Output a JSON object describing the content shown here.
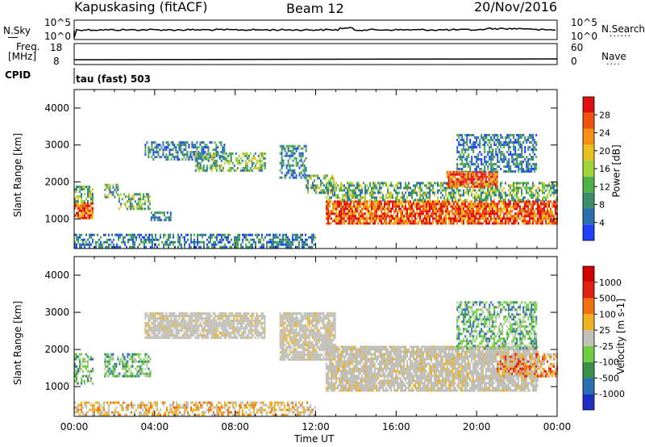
{
  "header": {
    "station": "Kapuskasing (fitACF)",
    "beam": "Beam 12",
    "date": "20/Nov/2016"
  },
  "top_panels": {
    "nsky_label": "N.Sky",
    "nsky_ticks": [
      "10^5",
      "10^0"
    ],
    "nsearch_label": "N.Search",
    "nsearch_ticks": [
      "10^5",
      "10^0"
    ],
    "freq_label": "Freq.",
    "freq_unit": "[MHz]",
    "freq_ticks": [
      "18",
      "8"
    ],
    "nave_label": "Nave",
    "nave_ticks": [
      "60",
      "0"
    ],
    "cpid_label": "CPID",
    "cpid_value": "tau (fast) 503"
  },
  "chart_data": [
    {
      "type": "heatmap",
      "name": "power-panel",
      "ylabel": "Slant Range [km]",
      "xlabel": "Time UT",
      "x_ticks": [
        "00:00",
        "04:00",
        "08:00",
        "12:00",
        "16:00",
        "20:00",
        "00:00"
      ],
      "y_ticks": [
        1000,
        2000,
        3000,
        4000
      ],
      "ylim": [
        200,
        4500
      ],
      "xlim_hours": [
        0,
        24
      ],
      "colorbar": {
        "label": "Power [dB]",
        "ticks": [
          4,
          8,
          12,
          16,
          20,
          24,
          28
        ],
        "range": [
          0,
          32
        ],
        "colors": [
          "#2040ff",
          "#2a6fb0",
          "#3a8f6a",
          "#4fb04a",
          "#9ed43a",
          "#e8c020",
          "#f59010",
          "#f05010",
          "#e01010"
        ]
      },
      "regions": [
        {
          "t0": 0.0,
          "t1": 0.9,
          "r0": 1050,
          "r1": 1450,
          "level": "strong"
        },
        {
          "t0": 0.0,
          "t1": 0.9,
          "r0": 1450,
          "r1": 1900,
          "level": "medium"
        },
        {
          "t0": 1.5,
          "t1": 2.2,
          "r0": 1600,
          "r1": 1950,
          "level": "medium"
        },
        {
          "t0": 2.2,
          "t1": 3.8,
          "r0": 1250,
          "r1": 1700,
          "level": "medium"
        },
        {
          "t0": 3.8,
          "t1": 4.8,
          "r0": 1000,
          "r1": 1200,
          "level": "weak"
        },
        {
          "t0": 3.5,
          "t1": 7.5,
          "r0": 2600,
          "r1": 3100,
          "level": "weak"
        },
        {
          "t0": 6.0,
          "t1": 9.5,
          "r0": 2300,
          "r1": 2800,
          "level": "medium"
        },
        {
          "t0": 10.2,
          "t1": 11.5,
          "r0": 2100,
          "r1": 3000,
          "level": "weak"
        },
        {
          "t0": 11.5,
          "t1": 13.0,
          "r0": 1700,
          "r1": 2200,
          "level": "medium"
        },
        {
          "t0": 12.5,
          "t1": 24.0,
          "r0": 900,
          "r1": 1500,
          "level": "strong"
        },
        {
          "t0": 12.5,
          "t1": 24.0,
          "r0": 1500,
          "r1": 2000,
          "level": "medium"
        },
        {
          "t0": 18.5,
          "t1": 21.0,
          "r0": 1900,
          "r1": 2300,
          "level": "strong"
        },
        {
          "t0": 19.0,
          "t1": 23.0,
          "r0": 2300,
          "r1": 3300,
          "level": "weak"
        },
        {
          "t0": 0.0,
          "t1": 12.0,
          "r0": 250,
          "r1": 600,
          "level": "weak"
        }
      ]
    },
    {
      "type": "heatmap",
      "name": "velocity-panel",
      "ylabel": "Slant Range [km]",
      "xlabel": "Time UT",
      "x_ticks": [
        "00:00",
        "04:00",
        "08:00",
        "12:00",
        "16:00",
        "20:00",
        "00:00"
      ],
      "y_ticks": [
        1000,
        2000,
        3000,
        4000
      ],
      "ylim": [
        200,
        4500
      ],
      "xlim_hours": [
        0,
        24
      ],
      "colorbar": {
        "label": "Velocity [m s-1]",
        "ticks": [
          "1000",
          "500",
          "100",
          "25",
          "-25",
          "-100",
          "-500",
          "-1000"
        ],
        "colors": [
          "#2030c0",
          "#2a6fb0",
          "#3a8f4a",
          "#6fcf40",
          "#c0c0b8",
          "#f0b020",
          "#f07010",
          "#e02010",
          "#d00000"
        ]
      },
      "regions": [
        {
          "t0": 0.0,
          "t1": 0.9,
          "r0": 1100,
          "r1": 1900,
          "level": "positive"
        },
        {
          "t0": 1.5,
          "t1": 3.8,
          "r0": 1300,
          "r1": 1900,
          "level": "positive"
        },
        {
          "t0": 3.5,
          "t1": 9.5,
          "r0": 2300,
          "r1": 3000,
          "level": "ground"
        },
        {
          "t0": 10.2,
          "t1": 13.0,
          "r0": 1700,
          "r1": 3000,
          "level": "ground"
        },
        {
          "t0": 12.5,
          "t1": 23.0,
          "r0": 900,
          "r1": 2100,
          "level": "ground"
        },
        {
          "t0": 21.0,
          "t1": 24.0,
          "r0": 1300,
          "r1": 1900,
          "level": "negative"
        },
        {
          "t0": 19.0,
          "t1": 23.0,
          "r0": 2000,
          "r1": 3300,
          "level": "positive"
        },
        {
          "t0": 0.0,
          "t1": 12.0,
          "r0": 250,
          "r1": 600,
          "level": "slow-negative"
        }
      ]
    }
  ]
}
